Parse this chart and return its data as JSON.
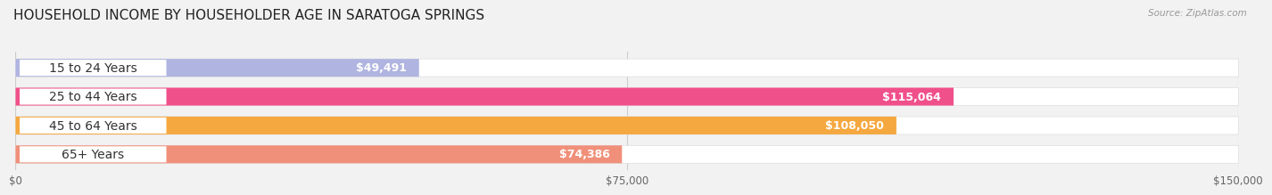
{
  "title": "HOUSEHOLD INCOME BY HOUSEHOLDER AGE IN SARATOGA SPRINGS",
  "source": "Source: ZipAtlas.com",
  "categories": [
    "15 to 24 Years",
    "25 to 44 Years",
    "45 to 64 Years",
    "65+ Years"
  ],
  "values": [
    49491,
    115064,
    108050,
    74386
  ],
  "bar_colors": [
    "#b0b4e0",
    "#f0508a",
    "#f5a840",
    "#f0907a"
  ],
  "value_labels": [
    "$49,491",
    "$115,064",
    "$108,050",
    "$74,386"
  ],
  "xmax": 150000,
  "xticks": [
    0,
    75000,
    150000
  ],
  "xticklabels": [
    "$0",
    "$75,000",
    "$150,000"
  ],
  "background_color": "#f2f2f2",
  "bar_bg_color": "#ffffff",
  "title_fontsize": 11,
  "label_fontsize": 10,
  "value_fontsize": 9
}
